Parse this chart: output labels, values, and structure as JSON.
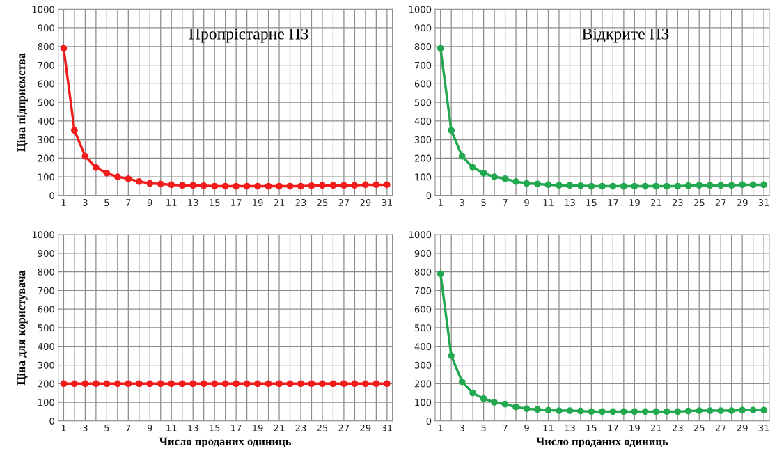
{
  "chart_data": [
    {
      "type": "line",
      "title": "Пропрієтарне ПЗ",
      "ylabel": "Ціна підприємства",
      "categories": [
        "1",
        null,
        "3",
        null,
        "5",
        null,
        "7",
        null,
        "9",
        null,
        "11",
        null,
        "13",
        null,
        "15",
        null,
        "17",
        null,
        "19",
        null,
        "21",
        null,
        "23",
        null,
        "25",
        null,
        "27",
        null,
        "29",
        null,
        "31"
      ],
      "series": [
        {
          "color": "#f21c1c",
          "values": [
            790,
            350,
            210,
            150,
            120,
            100,
            90,
            75,
            65,
            62,
            58,
            55,
            55,
            53,
            50,
            50,
            50,
            50,
            50,
            50,
            50,
            50,
            50,
            53,
            55,
            55,
            55,
            55,
            58,
            58,
            58
          ]
        }
      ],
      "ylim": [
        0,
        1000
      ],
      "yticks": [
        0,
        100,
        200,
        300,
        400,
        500,
        600,
        700,
        800,
        900,
        1000
      ],
      "grid": true,
      "marker": "circle",
      "line_style": "solid"
    },
    {
      "type": "line",
      "title": "Відкрите ПЗ",
      "categories": [
        "1",
        null,
        "3",
        null,
        "5",
        null,
        "7",
        null,
        "9",
        null,
        "11",
        null,
        "13",
        null,
        "15",
        null,
        "17",
        null,
        "19",
        null,
        "21",
        null,
        "23",
        null,
        "25",
        null,
        "27",
        null,
        "29",
        null,
        "31"
      ],
      "series": [
        {
          "color": "#22a84f",
          "values": [
            790,
            350,
            210,
            150,
            120,
            100,
            90,
            75,
            65,
            62,
            58,
            55,
            55,
            53,
            50,
            50,
            50,
            50,
            50,
            50,
            50,
            50,
            50,
            53,
            55,
            55,
            55,
            55,
            58,
            58,
            58
          ]
        }
      ],
      "ylim": [
        0,
        1000
      ],
      "yticks": [
        0,
        100,
        200,
        300,
        400,
        500,
        600,
        700,
        800,
        900,
        1000
      ],
      "grid": true,
      "marker": "circle",
      "line_style": "solid"
    },
    {
      "type": "line",
      "xlabel": "Число проданих одиниць",
      "ylabel": "Ціна для користувача",
      "categories": [
        "1",
        null,
        "3",
        null,
        "5",
        null,
        "7",
        null,
        "9",
        null,
        "11",
        null,
        "13",
        null,
        "15",
        null,
        "17",
        null,
        "19",
        null,
        "21",
        null,
        "23",
        null,
        "25",
        null,
        "27",
        null,
        "29",
        null,
        "31"
      ],
      "series": [
        {
          "color": "#f21c1c",
          "values": [
            200,
            200,
            200,
            200,
            200,
            200,
            200,
            200,
            200,
            200,
            200,
            200,
            200,
            200,
            200,
            200,
            200,
            200,
            200,
            200,
            200,
            200,
            200,
            200,
            200,
            200,
            200,
            200,
            200,
            200,
            200
          ]
        }
      ],
      "ylim": [
        0,
        1000
      ],
      "yticks": [
        0,
        100,
        200,
        300,
        400,
        500,
        600,
        700,
        800,
        900,
        1000
      ],
      "grid": true,
      "marker": "circle",
      "line_style": "solid"
    },
    {
      "type": "line",
      "xlabel": "Число проданих одиниць",
      "categories": [
        "1",
        null,
        "3",
        null,
        "5",
        null,
        "7",
        null,
        "9",
        null,
        "11",
        null,
        "13",
        null,
        "15",
        null,
        "17",
        null,
        "19",
        null,
        "21",
        null,
        "23",
        null,
        "25",
        null,
        "27",
        null,
        "29",
        null,
        "31"
      ],
      "series": [
        {
          "color": "#22a84f",
          "values": [
            790,
            350,
            210,
            150,
            120,
            100,
            90,
            75,
            65,
            62,
            58,
            55,
            55,
            53,
            50,
            50,
            50,
            50,
            50,
            50,
            50,
            50,
            50,
            53,
            55,
            55,
            55,
            55,
            58,
            58,
            58
          ]
        }
      ],
      "ylim": [
        0,
        1000
      ],
      "yticks": [
        0,
        100,
        200,
        300,
        400,
        500,
        600,
        700,
        800,
        900,
        1000
      ],
      "grid": true,
      "marker": "circle",
      "line_style": "solid"
    }
  ]
}
